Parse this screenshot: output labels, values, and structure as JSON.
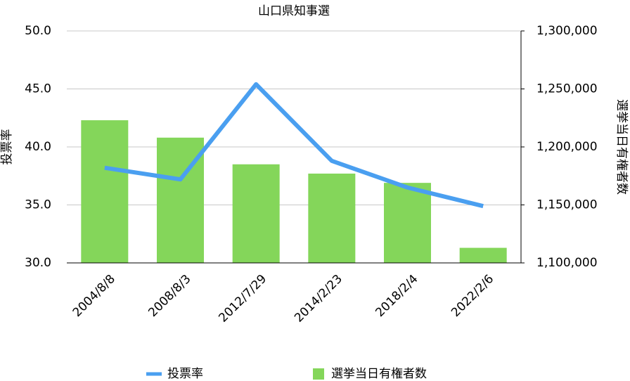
{
  "chart_data": {
    "type": "bar_line",
    "title": "山口県知事選",
    "categories": [
      "2004/8/8",
      "2008/8/3",
      "2012/7/29",
      "2014/2/23",
      "2018/2/4",
      "2022/2/6"
    ],
    "y_label": "投票率",
    "y2_label": "選挙当日有権者数",
    "ylim": [
      30,
      50
    ],
    "yticks": [
      {
        "value": 30,
        "label": "30.0"
      },
      {
        "value": 35,
        "label": "35.0"
      },
      {
        "value": 40,
        "label": "40.0"
      },
      {
        "value": 45,
        "label": "45.0"
      },
      {
        "value": 50,
        "label": "50.0"
      }
    ],
    "y2lim": [
      1100000,
      1300000
    ],
    "y2ticks": [
      {
        "value": 1100000,
        "label": "1,100,000"
      },
      {
        "value": 1150000,
        "label": "1,150,000"
      },
      {
        "value": 1200000,
        "label": "1,200,000"
      },
      {
        "value": 1250000,
        "label": "1,250,000"
      },
      {
        "value": 1300000,
        "label": "1,300,000"
      }
    ],
    "grid": true,
    "legend": "bottom",
    "series": [
      {
        "name": "投票率",
        "type": "line",
        "color": "#4a9ff0",
        "values": [
          38.2,
          37.2,
          45.4,
          38.8,
          36.5,
          34.9
        ]
      },
      {
        "name": "選挙当日有権者数",
        "type": "bar",
        "axis": "y2",
        "color": "#84d65a",
        "values": [
          1223000,
          1208000,
          1185000,
          1177000,
          1169000,
          1113000
        ]
      }
    ]
  }
}
